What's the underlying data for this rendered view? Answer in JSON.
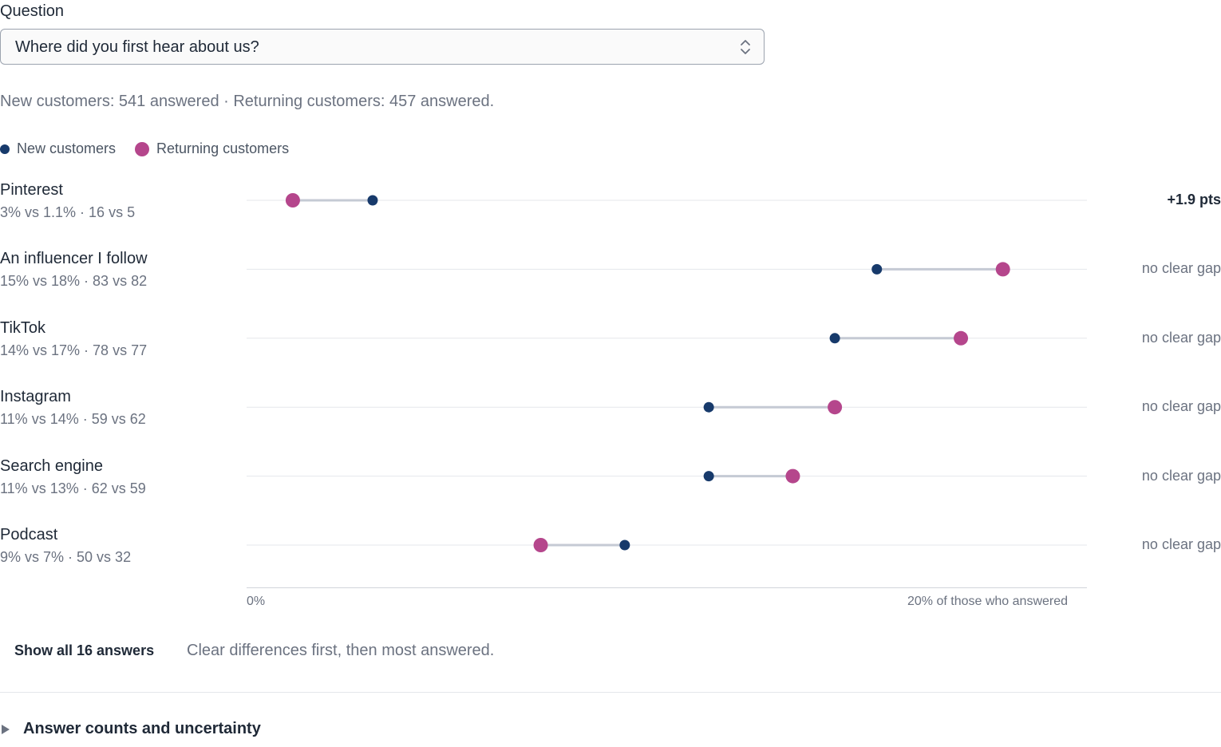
{
  "question": {
    "label": "Question",
    "selected": "Where did you first hear about us?"
  },
  "summary": "New customers: 541 answered · Returning customers: 457 answered.",
  "legend": {
    "new": "New customers",
    "returning": "Returning customers"
  },
  "colors": {
    "new": "#173a6b",
    "returning": "#b5468c",
    "connector": "#c5cad4",
    "gridline": "#e5e7eb",
    "axis": "#d1d5db"
  },
  "chart_data": {
    "type": "scatter",
    "subtype": "dumbbell",
    "xlim": [
      0,
      20
    ],
    "x_ticks": [
      "0%",
      "20% of those who answered"
    ],
    "series_names": [
      "New customers",
      "Returning customers"
    ],
    "rows": [
      {
        "label": "Pinterest",
        "new_pct": 3.0,
        "returning_pct": 1.1,
        "detail": "3% vs 1.1% · 16 vs 5",
        "gap": "+1.9 pts",
        "clear": true
      },
      {
        "label": "An influencer I follow",
        "new_pct": 15.0,
        "returning_pct": 18.0,
        "detail": "15% vs 18% · 83 vs 82",
        "gap": "no clear gap",
        "clear": false
      },
      {
        "label": "TikTok",
        "new_pct": 14.0,
        "returning_pct": 17.0,
        "detail": "14% vs 17% · 78 vs 77",
        "gap": "no clear gap",
        "clear": false
      },
      {
        "label": "Instagram",
        "new_pct": 11.0,
        "returning_pct": 14.0,
        "detail": "11% vs 14% · 59 vs 62",
        "gap": "no clear gap",
        "clear": false
      },
      {
        "label": "Search engine",
        "new_pct": 11.0,
        "returning_pct": 13.0,
        "detail": "11% vs 13% · 62 vs 59",
        "gap": "no clear gap",
        "clear": false
      },
      {
        "label": "Podcast",
        "new_pct": 9.0,
        "returning_pct": 7.0,
        "detail": "9% vs 7% · 50 vs 32",
        "gap": "no clear gap",
        "clear": false
      }
    ]
  },
  "footer": {
    "show_all": "Show all 16 answers",
    "sort_note": "Clear differences first, then most answered.",
    "details_toggle": "Answer counts and uncertainty"
  }
}
